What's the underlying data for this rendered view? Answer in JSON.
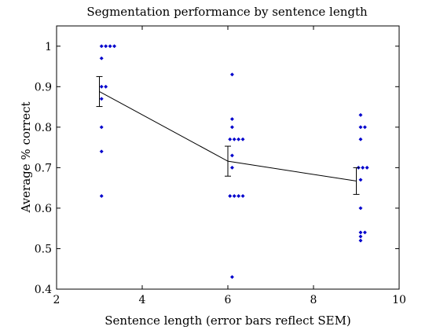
{
  "chart_data": {
    "type": "scatter",
    "title": "Segmentation performance by sentence length",
    "xlabel": "Sentence length (error bars reflect SEM)",
    "ylabel": "Average % correct",
    "xlim": [
      2,
      10
    ],
    "ylim": [
      0.4,
      1.05
    ],
    "xticks": [
      2,
      4,
      6,
      8,
      10
    ],
    "yticks": [
      0.4,
      0.5,
      0.6,
      0.7,
      0.8,
      0.9,
      1
    ],
    "ytick_labels": [
      "0.4",
      "0.5",
      "0.6",
      "0.7",
      "0.8",
      "0.9",
      "1"
    ],
    "grid": false,
    "point_color": "#0000cc",
    "series": [
      {
        "values": [
          {
            "x": 3.05,
            "y": 1.0
          },
          {
            "x": 3.15,
            "y": 1.0
          },
          {
            "x": 3.25,
            "y": 1.0
          },
          {
            "x": 3.35,
            "y": 1.0
          },
          {
            "x": 3.05,
            "y": 0.97
          },
          {
            "x": 3.05,
            "y": 0.9
          },
          {
            "x": 3.15,
            "y": 0.9
          },
          {
            "x": 3.05,
            "y": 0.87
          },
          {
            "x": 3.05,
            "y": 0.8
          },
          {
            "x": 3.05,
            "y": 0.74
          },
          {
            "x": 3.05,
            "y": 0.63
          },
          {
            "x": 6.1,
            "y": 0.93
          },
          {
            "x": 6.1,
            "y": 0.82
          },
          {
            "x": 6.1,
            "y": 0.8
          },
          {
            "x": 6.05,
            "y": 0.77
          },
          {
            "x": 6.15,
            "y": 0.77
          },
          {
            "x": 6.25,
            "y": 0.77
          },
          {
            "x": 6.35,
            "y": 0.77
          },
          {
            "x": 6.1,
            "y": 0.73
          },
          {
            "x": 6.1,
            "y": 0.7
          },
          {
            "x": 6.05,
            "y": 0.63
          },
          {
            "x": 6.15,
            "y": 0.63
          },
          {
            "x": 6.25,
            "y": 0.63
          },
          {
            "x": 6.35,
            "y": 0.63
          },
          {
            "x": 6.1,
            "y": 0.43
          },
          {
            "x": 9.1,
            "y": 0.83
          },
          {
            "x": 9.1,
            "y": 0.8
          },
          {
            "x": 9.2,
            "y": 0.8
          },
          {
            "x": 9.1,
            "y": 0.77
          },
          {
            "x": 9.05,
            "y": 0.7
          },
          {
            "x": 9.15,
            "y": 0.7
          },
          {
            "x": 9.25,
            "y": 0.7
          },
          {
            "x": 9.1,
            "y": 0.67
          },
          {
            "x": 9.1,
            "y": 0.6
          },
          {
            "x": 9.1,
            "y": 0.54
          },
          {
            "x": 9.2,
            "y": 0.54
          },
          {
            "x": 9.1,
            "y": 0.53
          },
          {
            "x": 9.1,
            "y": 0.52
          }
        ]
      },
      {
        "type": "line",
        "values": [
          {
            "x": 3,
            "y": 0.888,
            "sem": 0.037
          },
          {
            "x": 6,
            "y": 0.716,
            "sem": 0.037
          },
          {
            "x": 9,
            "y": 0.667,
            "sem": 0.033
          }
        ]
      }
    ]
  }
}
